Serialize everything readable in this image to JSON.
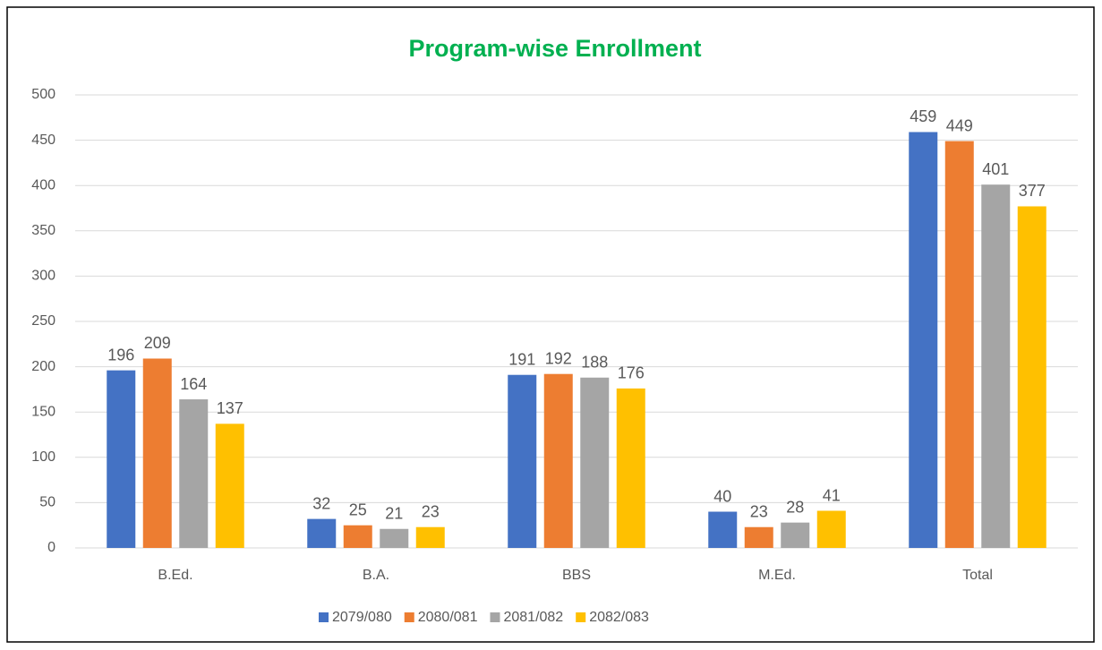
{
  "chart_data": {
    "type": "bar",
    "title": "Program-wise Enrollment",
    "categories": [
      "B.Ed.",
      "B.A.",
      "BBS",
      "M.Ed.",
      "Total"
    ],
    "series": [
      {
        "name": "2079/080",
        "color": "#4472c4",
        "values": [
          196,
          32,
          191,
          40,
          459
        ]
      },
      {
        "name": "2080/081",
        "color": "#ed7d31",
        "values": [
          209,
          25,
          192,
          23,
          449
        ]
      },
      {
        "name": "2081/082",
        "color": "#a5a5a5",
        "values": [
          164,
          21,
          188,
          28,
          401
        ]
      },
      {
        "name": "2082/083",
        "color": "#ffc000",
        "values": [
          137,
          23,
          176,
          41,
          377
        ]
      }
    ],
    "ylim": [
      0,
      500
    ],
    "yticks": [
      0,
      50,
      100,
      150,
      200,
      250,
      300,
      350,
      400,
      450,
      500
    ],
    "grid": true,
    "legend": "bottom"
  }
}
